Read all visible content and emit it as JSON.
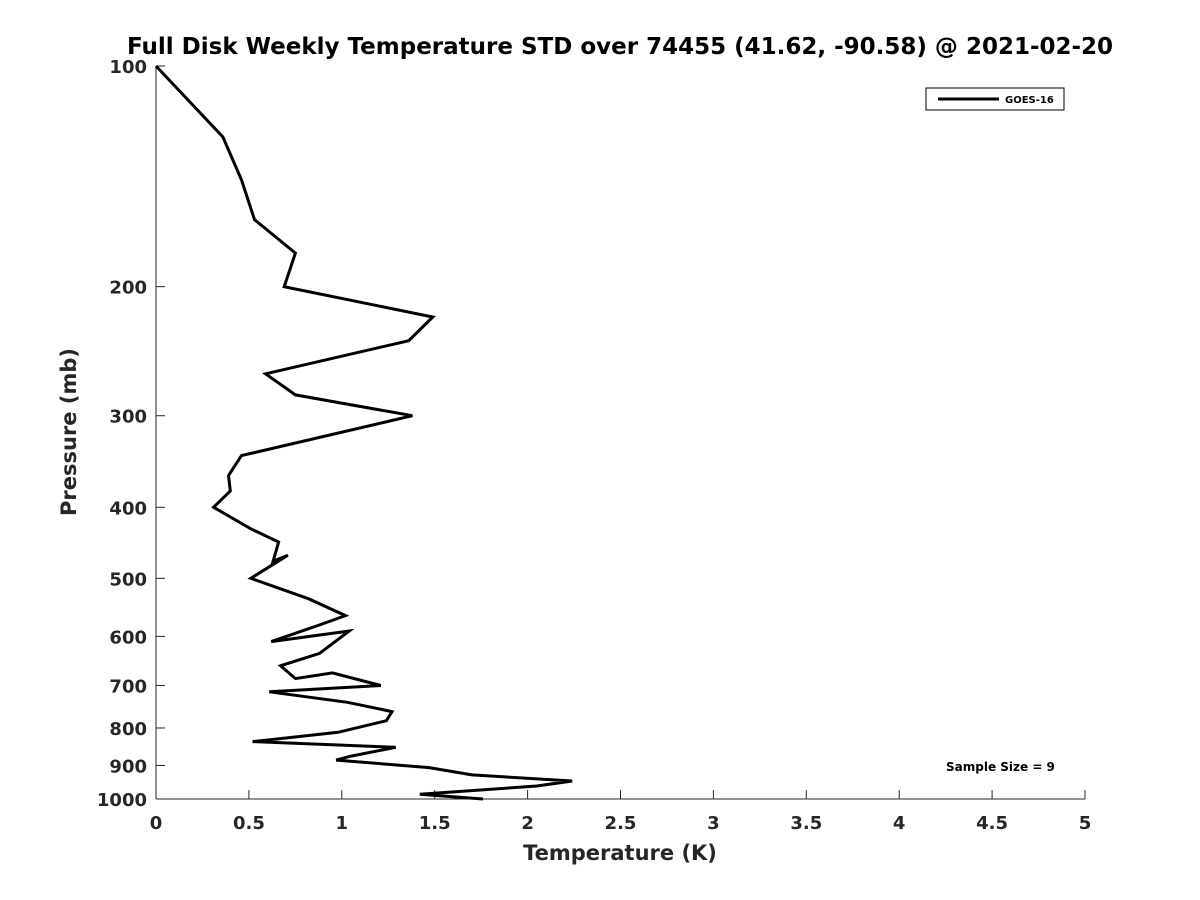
{
  "chart_data": {
    "type": "line",
    "title": "Full Disk Weekly Temperature STD over 74455 (41.62, -90.58) @ 2021-02-20",
    "xlabel": "Temperature (K)",
    "ylabel": "Pressure (mb)",
    "xlim": [
      0,
      5
    ],
    "ylim": [
      100,
      1000
    ],
    "y_scale": "log",
    "y_reversed": true,
    "x_ticks": [
      "0",
      "0.5",
      "1",
      "1.5",
      "2",
      "2.5",
      "3",
      "3.5",
      "4",
      "4.5",
      "5"
    ],
    "y_ticks": [
      "100",
      "200",
      "300",
      "400",
      "500",
      "600",
      "700",
      "800",
      "900",
      "1000"
    ],
    "grid": false,
    "legend": {
      "position": "top-right",
      "entries": [
        "GOES-16"
      ]
    },
    "annotation": "Sample Size = 9",
    "series": [
      {
        "name": "GOES-16",
        "color": "#000000",
        "x": [
          0.0,
          0.36,
          0.46,
          0.53,
          0.75,
          0.69,
          1.49,
          1.36,
          0.59,
          0.75,
          1.38,
          0.46,
          0.39,
          0.4,
          0.31,
          0.51,
          0.66,
          0.63,
          0.71,
          0.51,
          0.82,
          1.02,
          0.87,
          0.62,
          1.04,
          0.88,
          0.67,
          0.75,
          0.95,
          1.21,
          0.61,
          1.03,
          1.27,
          1.24,
          0.98,
          0.52,
          1.29,
          1.05,
          0.97,
          1.47,
          1.7,
          2.24,
          2.05,
          1.42,
          1.76
        ],
        "y": [
          100,
          125,
          143,
          162,
          180,
          200,
          220,
          237,
          263,
          281,
          300,
          340,
          362,
          380,
          400,
          428,
          446,
          474,
          465,
          500,
          533,
          562,
          580,
          610,
          590,
          633,
          658,
          685,
          673,
          700,
          714,
          738,
          760,
          782,
          811,
          835,
          850,
          874,
          885,
          906,
          927,
          945,
          960,
          985,
          1000
        ]
      }
    ]
  }
}
